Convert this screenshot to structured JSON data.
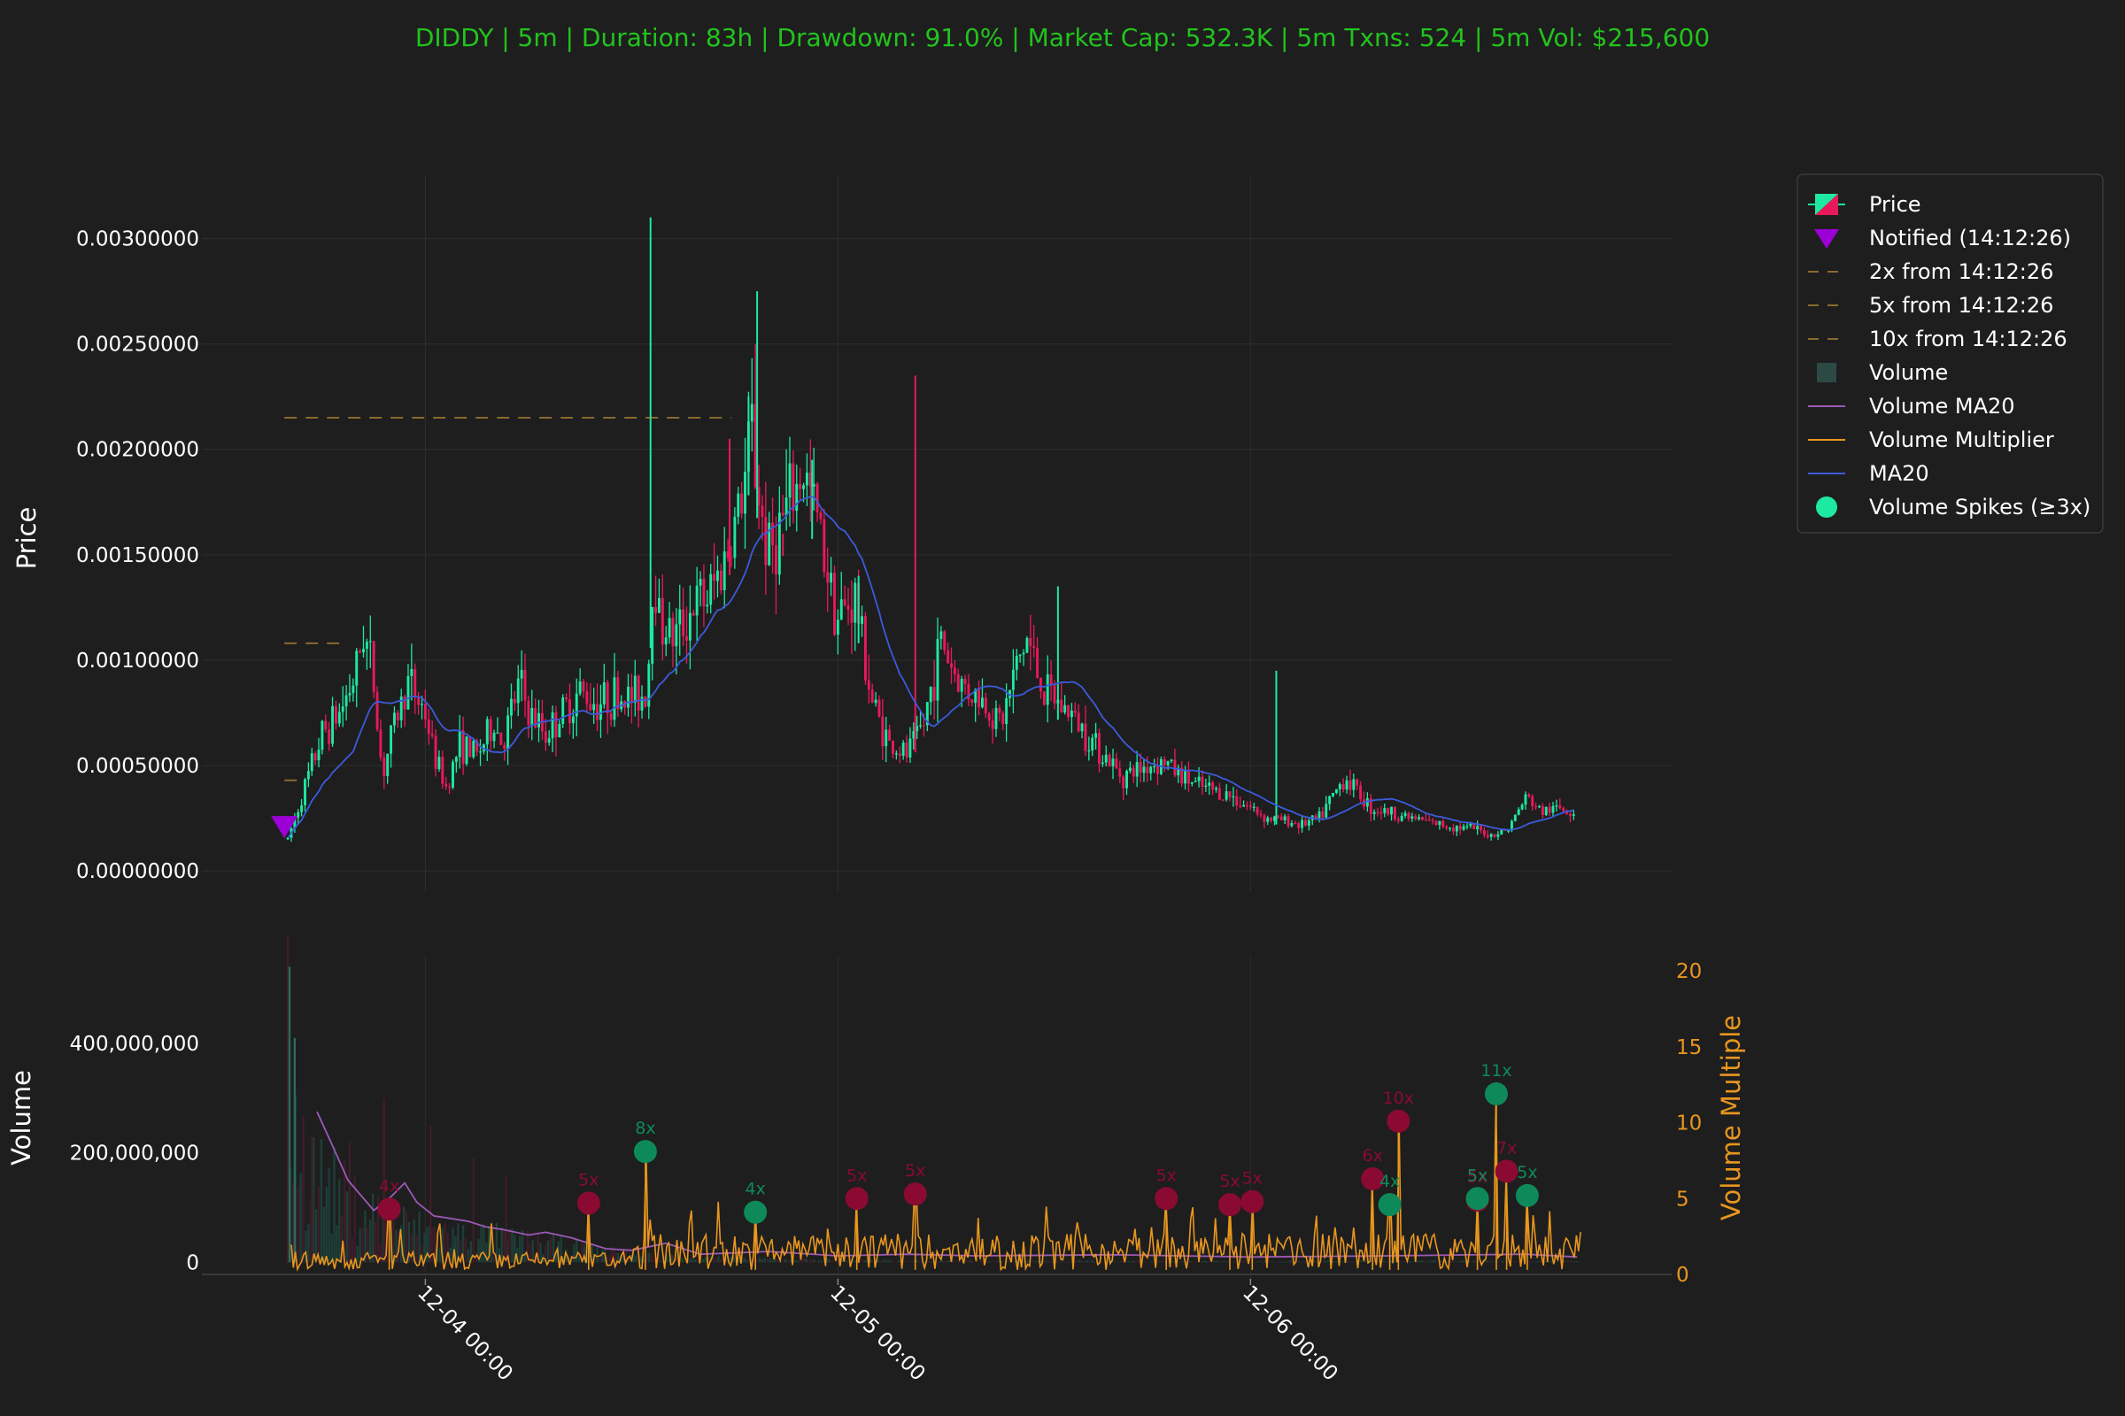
{
  "title": "DIDDY | 5m | Duration: 83h | Drawdown: 91.0% | Market Cap: 532.3K | 5m Txns: 524 | 5m Vol: $215,600",
  "colors": {
    "background": "#1e1e1e",
    "up": "#1de9a0",
    "down": "#e8195a",
    "ma20": "#3b5bdb",
    "volume_ma20": "#9b59b6",
    "volume_multiplier": "#e8961e",
    "notify": "#9c00d6",
    "target_line": "#8a6a2e",
    "title": "#22c31d"
  },
  "chart_data": [
    {
      "type": "candlestick",
      "ylabel": "Price",
      "ylim": [
        -0.0001,
        0.0033
      ],
      "yticks": [
        "0.00000000",
        "0.00050000",
        "0.00100000",
        "0.00150000",
        "0.00200000",
        "0.00250000",
        "0.00300000"
      ],
      "ytick_values": [
        0,
        0.0005,
        0.001,
        0.0015,
        0.002,
        0.0025,
        0.003
      ],
      "x_hours_range": [
        -13,
        72.5
      ],
      "xticks": [
        "12-04 00:00",
        "12-05 00:00",
        "12-06 00:00"
      ],
      "xtick_hours": [
        0,
        24,
        48
      ],
      "notify": {
        "hour": -8.2,
        "price": 0.00021
      },
      "target_lines": [
        {
          "label": "2x",
          "price": 0.00043,
          "x_end_hour": -7.2
        },
        {
          "label": "5x",
          "price": 0.00108,
          "x_end_hour": -4.8
        },
        {
          "label": "10x",
          "price": 0.00215,
          "x_end_hour": 17.8
        }
      ],
      "price_path": [
        [
          -8.0,
          0.00015
        ],
        [
          -7.0,
          0.0004
        ],
        [
          -6.0,
          0.00065
        ],
        [
          -5.0,
          0.00075
        ],
        [
          -4.0,
          0.00095
        ],
        [
          -3.6,
          0.00115
        ],
        [
          -3.0,
          0.0009
        ],
        [
          -2.5,
          0.00045
        ],
        [
          -1.8,
          0.0007
        ],
        [
          -1.0,
          0.0009
        ],
        [
          0.0,
          0.00075
        ],
        [
          0.5,
          0.00055
        ],
        [
          1.2,
          0.0004
        ],
        [
          2.0,
          0.0006
        ],
        [
          3.0,
          0.00055
        ],
        [
          4.0,
          0.0007
        ],
        [
          4.5,
          0.0006
        ],
        [
          5.5,
          0.0009
        ],
        [
          6.0,
          0.00075
        ],
        [
          7.0,
          0.00065
        ],
        [
          8.0,
          0.00075
        ],
        [
          9.0,
          0.00085
        ],
        [
          10.0,
          0.0008
        ],
        [
          11.0,
          0.00083
        ],
        [
          12.0,
          0.00082
        ],
        [
          12.9,
          0.00085
        ],
        [
          13.3,
          0.0015
        ],
        [
          13.6,
          0.0012
        ],
        [
          14.5,
          0.0011
        ],
        [
          15.5,
          0.00125
        ],
        [
          16.5,
          0.0013
        ],
        [
          17.5,
          0.0015
        ],
        [
          18.5,
          0.0018
        ],
        [
          19.0,
          0.0021
        ],
        [
          19.5,
          0.0017
        ],
        [
          20.0,
          0.0015
        ],
        [
          21.0,
          0.0017
        ],
        [
          22.0,
          0.0019
        ],
        [
          23.0,
          0.0016
        ],
        [
          24.0,
          0.0012
        ],
        [
          25.0,
          0.0013
        ],
        [
          26.0,
          0.0008
        ],
        [
          27.0,
          0.0006
        ],
        [
          28.0,
          0.00055
        ],
        [
          29.0,
          0.0007
        ],
        [
          30.0,
          0.0011
        ],
        [
          31.0,
          0.0009
        ],
        [
          32.5,
          0.0008
        ],
        [
          33.5,
          0.0007
        ],
        [
          34.5,
          0.001
        ],
        [
          35.0,
          0.0011
        ],
        [
          36.0,
          0.00085
        ],
        [
          37.5,
          0.00075
        ],
        [
          39.0,
          0.0006
        ],
        [
          40.5,
          0.00045
        ],
        [
          42.0,
          0.0005
        ],
        [
          43.0,
          0.00052
        ],
        [
          44.0,
          0.00045
        ],
        [
          45.0,
          0.0004
        ],
        [
          46.0,
          0.00038
        ],
        [
          47.0,
          0.00035
        ],
        [
          48.0,
          0.0003
        ],
        [
          49.0,
          0.00025
        ],
        [
          50.0,
          0.00024
        ],
        [
          51.0,
          0.00022
        ],
        [
          52.0,
          0.00025
        ],
        [
          53.0,
          0.00038
        ],
        [
          53.5,
          0.00045
        ],
        [
          54.0,
          0.0004
        ],
        [
          55.0,
          0.0003
        ],
        [
          56.0,
          0.00028
        ],
        [
          57.0,
          0.00026
        ],
        [
          58.0,
          0.00024
        ],
        [
          59.0,
          0.00022
        ],
        [
          60.0,
          0.00021
        ],
        [
          61.0,
          0.0002
        ],
        [
          62.0,
          0.00017
        ],
        [
          63.0,
          0.0002
        ],
        [
          64.0,
          0.00035
        ],
        [
          65.0,
          0.00028
        ],
        [
          66.0,
          0.0003
        ],
        [
          67.0,
          0.00028
        ]
      ],
      "spike_wicks": [
        [
          13.1,
          0.0031
        ],
        [
          17.7,
          0.00205
        ],
        [
          18.8,
          0.00225
        ],
        [
          19.3,
          0.00275
        ],
        [
          20.8,
          0.0016
        ],
        [
          22.5,
          0.00195
        ],
        [
          25.2,
          0.0014
        ],
        [
          28.5,
          0.00235
        ],
        [
          36.8,
          0.00135
        ],
        [
          49.5,
          0.00095
        ]
      ]
    },
    {
      "type": "bar+line",
      "ylabel": "Volume",
      "ylim": [
        -30000000,
        560000000
      ],
      "yticks": [
        "0",
        "200,000,000",
        "400,000,000"
      ],
      "ytick_values": [
        0,
        200000000,
        400000000
      ],
      "y2label": "Volume Multiple",
      "y2lim": [
        0,
        21
      ],
      "y2ticks": [
        "0",
        "5",
        "10",
        "15",
        "20"
      ],
      "y2tick_values": [
        0,
        5,
        10,
        15,
        20
      ],
      "volume_path": [
        [
          -8.0,
          450000000
        ],
        [
          -7.5,
          300000000
        ],
        [
          -7.0,
          220000000
        ],
        [
          -6.0,
          180000000
        ],
        [
          -5.0,
          150000000
        ],
        [
          -4.0,
          120000000
        ],
        [
          -3.0,
          110000000
        ],
        [
          -2.0,
          90000000
        ],
        [
          -1.0,
          80000000
        ],
        [
          0.0,
          70000000
        ],
        [
          2.0,
          60000000
        ],
        [
          4.0,
          55000000
        ],
        [
          6.0,
          45000000
        ],
        [
          8.0,
          35000000
        ],
        [
          10.0,
          25000000
        ],
        [
          12.0,
          18000000
        ],
        [
          14.0,
          12000000
        ],
        [
          18.0,
          8000000
        ],
        [
          24.0,
          5000000
        ],
        [
          30.0,
          3000000
        ]
      ],
      "volume_ma20": [
        [
          -6.3,
          275000000
        ],
        [
          -5.5,
          220000000
        ],
        [
          -4.5,
          150000000
        ],
        [
          -3.0,
          95000000
        ],
        [
          -2.0,
          120000000
        ],
        [
          -1.2,
          145000000
        ],
        [
          -0.5,
          110000000
        ],
        [
          0.5,
          85000000
        ],
        [
          1.5,
          80000000
        ],
        [
          2.5,
          75000000
        ],
        [
          3.5,
          65000000
        ],
        [
          4.5,
          60000000
        ],
        [
          6.0,
          50000000
        ],
        [
          7.0,
          55000000
        ],
        [
          8.5,
          45000000
        ],
        [
          10.5,
          25000000
        ],
        [
          12.0,
          22000000
        ],
        [
          14.0,
          35000000
        ],
        [
          16.0,
          15000000
        ],
        [
          20.0,
          20000000
        ],
        [
          24.0,
          12000000
        ],
        [
          28.0,
          15000000
        ],
        [
          32.0,
          12000000
        ],
        [
          40.0,
          14000000
        ],
        [
          48.0,
          10000000
        ],
        [
          56.0,
          12000000
        ],
        [
          64.0,
          15000000
        ],
        [
          67.0,
          10000000
        ]
      ],
      "spikes": [
        {
          "hour": -2.1,
          "multiple": 4.3,
          "label": "4x",
          "dir": "down"
        },
        {
          "hour": 9.5,
          "multiple": 4.7,
          "label": "5x",
          "dir": "down"
        },
        {
          "hour": 12.8,
          "multiple": 8.1,
          "label": "8x",
          "dir": "up"
        },
        {
          "hour": 19.2,
          "multiple": 4.1,
          "label": "4x",
          "dir": "up"
        },
        {
          "hour": 25.1,
          "multiple": 5.0,
          "label": "5x",
          "dir": "down"
        },
        {
          "hour": 28.5,
          "multiple": 5.3,
          "label": "5x",
          "dir": "down"
        },
        {
          "hour": 43.1,
          "multiple": 5.0,
          "label": "5x",
          "dir": "down"
        },
        {
          "hour": 46.8,
          "multiple": 4.6,
          "label": "5x",
          "dir": "down"
        },
        {
          "hour": 48.1,
          "multiple": 4.8,
          "label": "5x",
          "dir": "down"
        },
        {
          "hour": 55.1,
          "multiple": 6.3,
          "label": "6x",
          "dir": "down"
        },
        {
          "hour": 56.1,
          "multiple": 4.6,
          "label": "4x",
          "dir": "up"
        },
        {
          "hour": 56.6,
          "multiple": 10.1,
          "label": "10x",
          "dir": "down"
        },
        {
          "hour": 61.2,
          "multiple": 4.9,
          "label": "5x",
          "dir": "down"
        },
        {
          "hour": 61.2,
          "multiple": 5.0,
          "label": "5x",
          "dir": "up"
        },
        {
          "hour": 62.3,
          "multiple": 11.9,
          "label": "11x",
          "dir": "up"
        },
        {
          "hour": 62.9,
          "multiple": 6.8,
          "label": "7x",
          "dir": "down"
        },
        {
          "hour": 64.1,
          "multiple": 5.2,
          "label": "5x",
          "dir": "up"
        }
      ]
    }
  ],
  "legend": [
    {
      "label": "Price",
      "icon": "candle-icon"
    },
    {
      "label": "Notified (14:12:26)",
      "icon": "triangle-down-icon"
    },
    {
      "label": "2x from 14:12:26",
      "icon": "dashed-line-icon"
    },
    {
      "label": "5x from 14:12:26",
      "icon": "dashed-line-icon"
    },
    {
      "label": "10x from 14:12:26",
      "icon": "dashed-line-icon"
    },
    {
      "label": "Volume",
      "icon": "square-icon"
    },
    {
      "label": "Volume MA20",
      "icon": "line-icon"
    },
    {
      "label": "Volume Multiplier",
      "icon": "line-icon"
    },
    {
      "label": "MA20",
      "icon": "line-icon"
    },
    {
      "label": "Volume Spikes (≥3x)",
      "icon": "circle-icon"
    }
  ]
}
